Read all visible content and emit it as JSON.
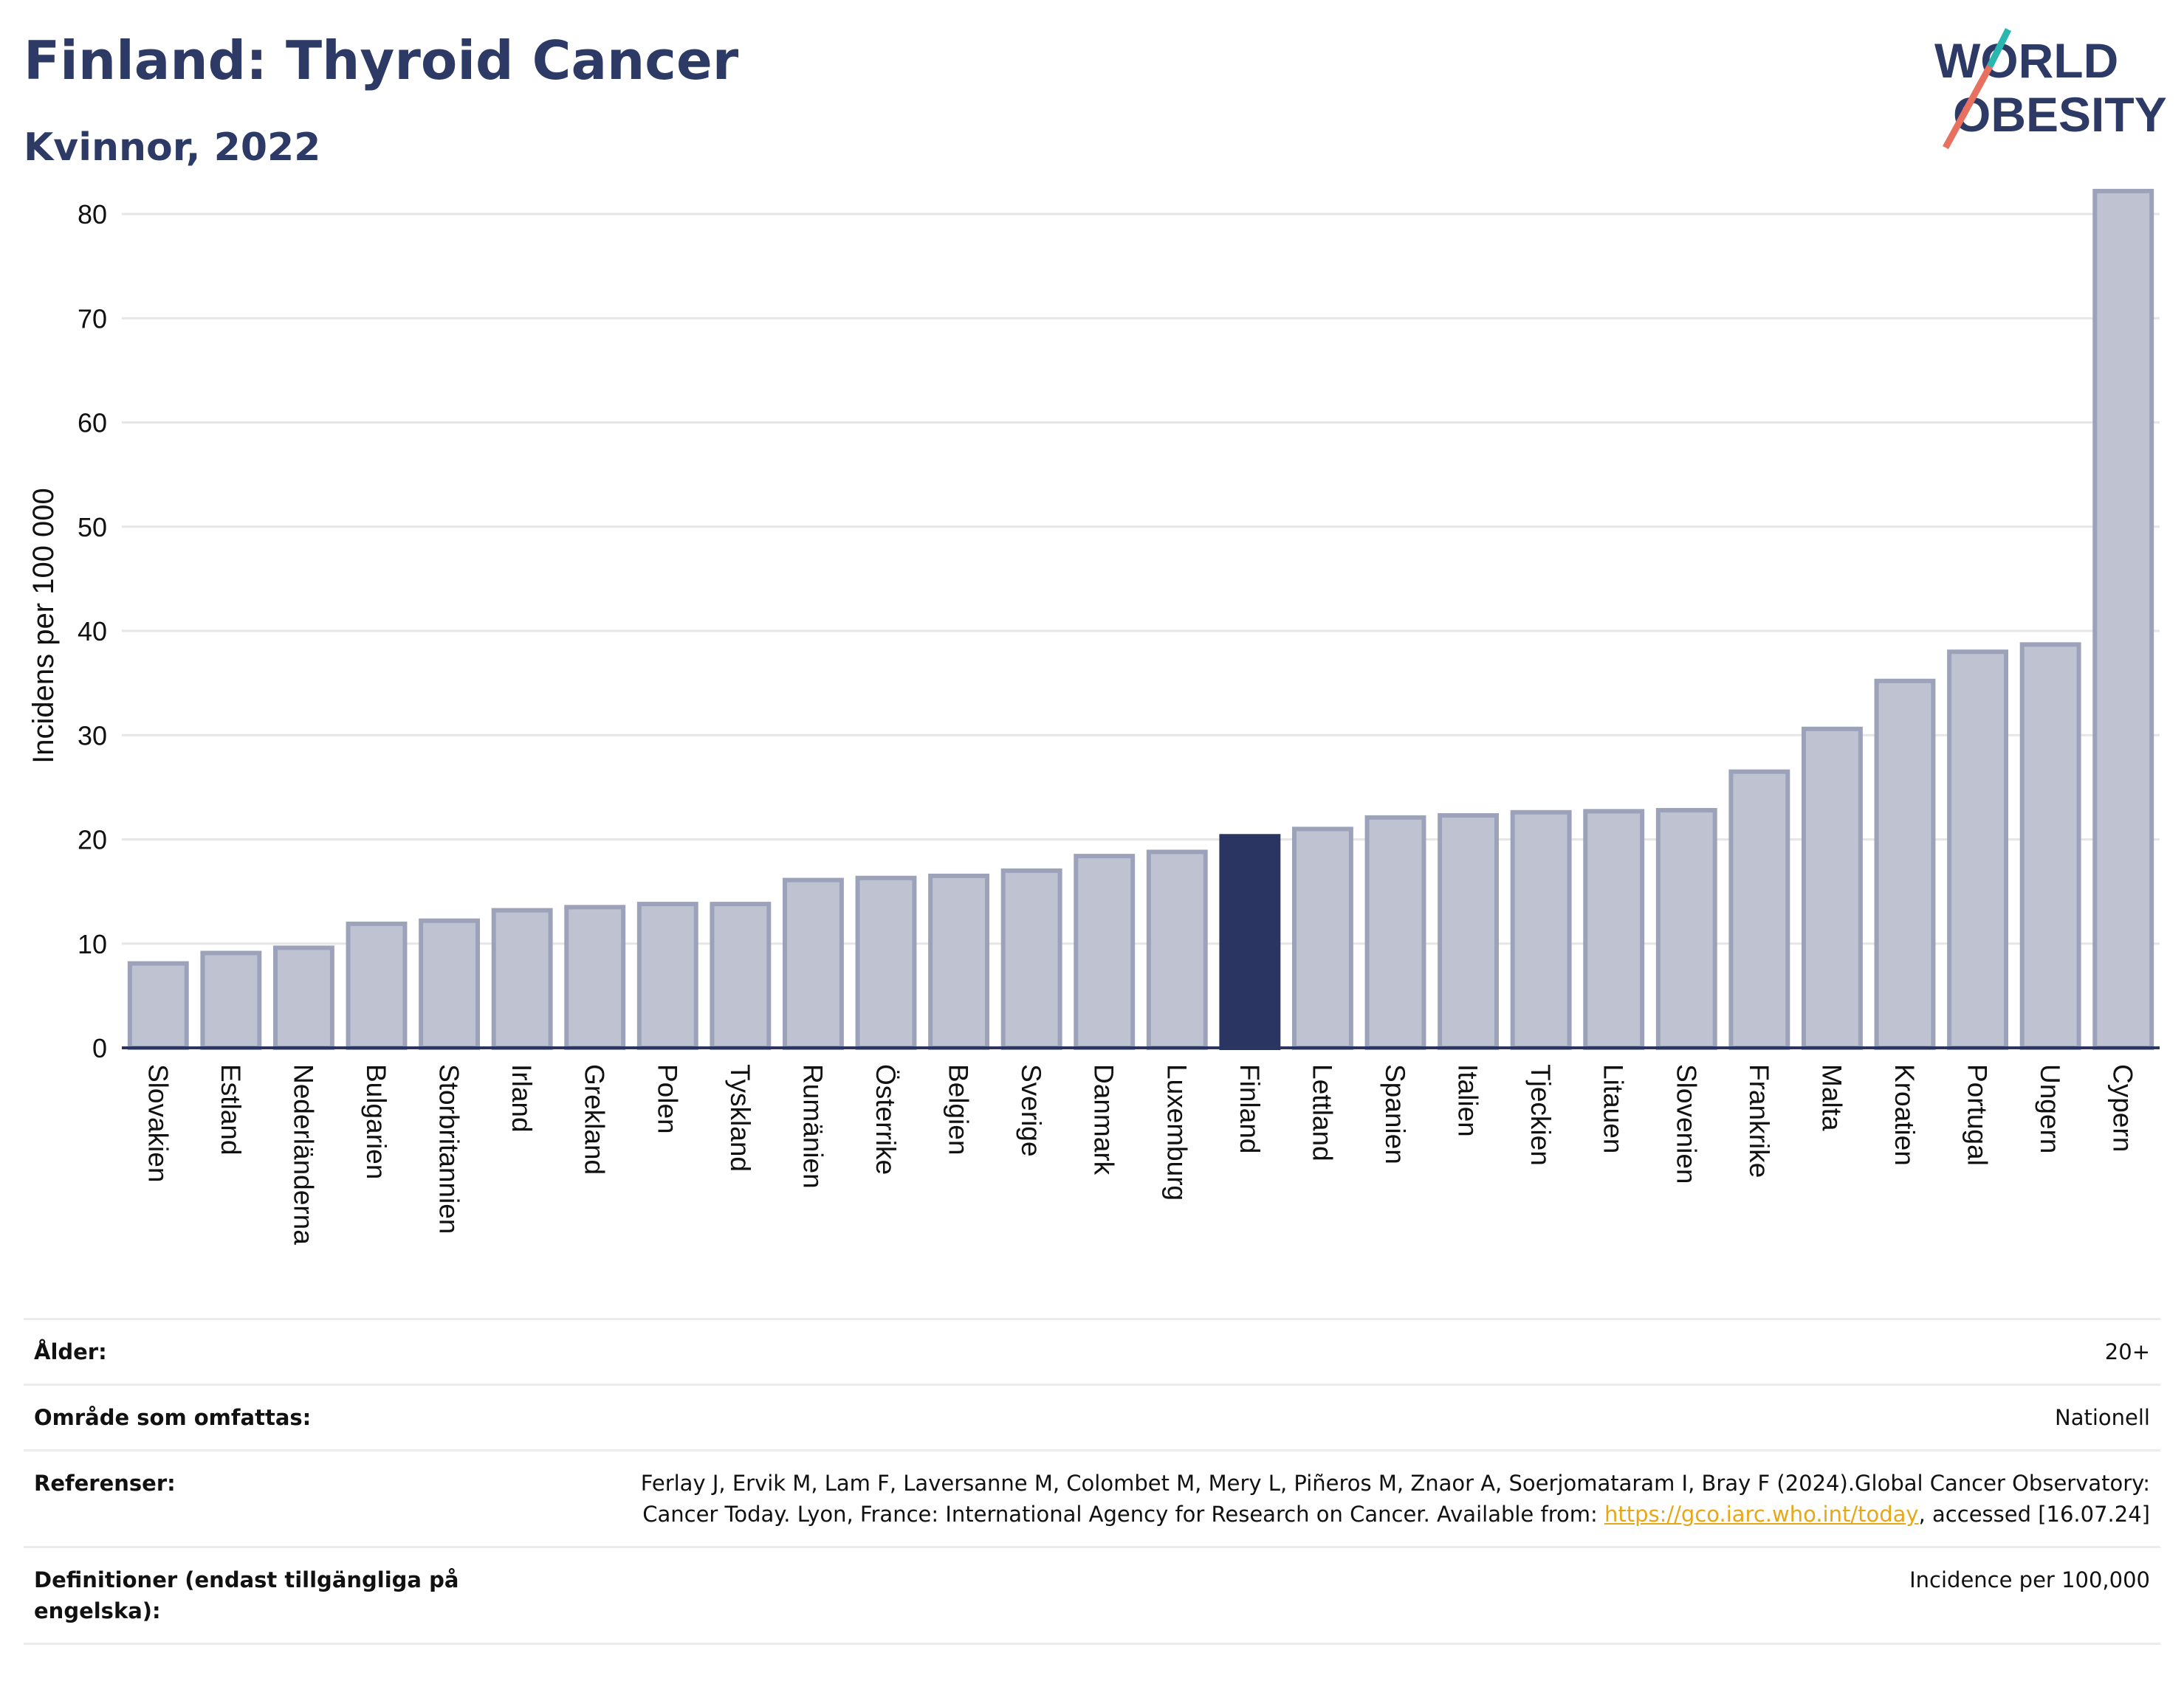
{
  "header": {
    "title": "Finland: Thyroid Cancer",
    "subtitle": "Kvinnor, 2022",
    "logo_line1": "WORLD",
    "logo_line2": "OBESITY"
  },
  "chart_data": {
    "type": "bar",
    "ylabel": "Incidens per 100 000",
    "xlabel": "",
    "ylim": [
      0,
      85
    ],
    "yticks": [
      0,
      10,
      20,
      30,
      40,
      50,
      60,
      70,
      80
    ],
    "grid": true,
    "highlight": "Finland",
    "categories": [
      "Slovakien",
      "Estland",
      "Nederländerna",
      "Bulgarien",
      "Storbritannien",
      "Irland",
      "Grekland",
      "Polen",
      "Tyskland",
      "Rumänien",
      "Österrike",
      "Belgien",
      "Sverige",
      "Danmark",
      "Luxemburg",
      "Finland",
      "Lettland",
      "Spanien",
      "Italien",
      "Tjeckien",
      "Litauen",
      "Slovenien",
      "Frankrike",
      "Malta",
      "Kroatien",
      "Portugal",
      "Ungern",
      "Cypern"
    ],
    "values": [
      8.1,
      9.1,
      9.6,
      11.9,
      12.2,
      13.2,
      13.5,
      13.8,
      13.8,
      16.1,
      16.3,
      16.5,
      17.0,
      18.4,
      18.8,
      20.3,
      21.0,
      22.1,
      22.3,
      22.6,
      22.7,
      22.8,
      26.5,
      30.6,
      35.2,
      38.0,
      38.7,
      82.2
    ],
    "colors": {
      "bar": "#bfc2d1",
      "bar_edge": "#9da2bb",
      "highlight": "#2b3561",
      "axis": "#2b3561",
      "grid": "#e6e6e6"
    }
  },
  "meta": {
    "rows": [
      {
        "key": "Ålder:",
        "value": "20+"
      },
      {
        "key": "Område som omfattas:",
        "value": "Nationell"
      },
      {
        "key": "Referenser:",
        "value_pre": "Ferlay J, Ervik M, Lam F, Laversanne M, Colombet M, Mery L, Piñeros M, Znaor A, Soerjomataram I, Bray F (2024).Global Cancer Observatory: Cancer Today. Lyon, France: International Agency for Research on Cancer. Available from: ",
        "link": "https://gco.iarc.who.int/today",
        "value_post": ", accessed [16.07.24]"
      },
      {
        "key": "Definitioner (endast tillgängliga på engelska):",
        "value": "Incidence per 100,000"
      }
    ]
  }
}
